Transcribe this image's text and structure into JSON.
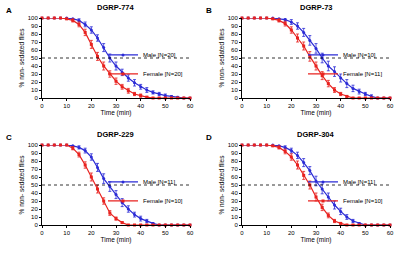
{
  "chart_data": [
    {
      "type": "line",
      "panel_label": "A",
      "title": "DGRP-774",
      "x_label": "Time (min)",
      "y_label": "% non- sedated flies",
      "x": [
        0,
        2.5,
        5,
        7.5,
        10,
        12.5,
        15,
        17.5,
        20,
        22.5,
        25,
        27.5,
        30,
        32.5,
        35,
        37.5,
        40,
        42.5,
        45,
        47.5,
        50,
        52.5,
        55,
        57.5,
        60
      ],
      "series": [
        {
          "name": "Male [N=20]",
          "color": "#2b2bd6",
          "marker": "circle",
          "values": [
            100,
            100,
            100,
            100,
            100,
            99,
            97,
            92,
            85,
            75,
            63,
            50,
            40,
            32,
            25,
            19,
            14,
            10,
            7,
            5,
            3,
            2,
            1,
            0,
            0
          ],
          "errors": [
            0,
            0,
            0,
            0,
            0,
            1,
            2,
            3,
            4,
            4,
            5,
            5,
            5,
            4,
            4,
            4,
            3,
            3,
            2,
            2,
            2,
            1,
            1,
            0,
            0
          ]
        },
        {
          "name": "Female [N=20]",
          "color": "#e8221f",
          "marker": "square",
          "values": [
            100,
            100,
            100,
            100,
            99,
            97,
            92,
            82,
            67,
            52,
            40,
            30,
            21,
            14,
            9,
            5,
            3,
            1,
            0,
            0,
            0,
            0,
            0,
            0,
            0
          ],
          "errors": [
            0,
            0,
            0,
            0,
            1,
            2,
            3,
            4,
            5,
            5,
            5,
            4,
            4,
            3,
            3,
            2,
            2,
            1,
            0,
            0,
            0,
            0,
            0,
            0,
            0
          ]
        }
      ],
      "reference_line": 50,
      "xlim": [
        0,
        60
      ],
      "ylim": [
        0,
        100
      ],
      "xticks": [
        0,
        10,
        20,
        30,
        40,
        50,
        60
      ],
      "yticks": [
        0,
        10,
        20,
        30,
        40,
        50,
        60,
        70,
        80,
        90,
        100
      ],
      "grid": false
    },
    {
      "type": "line",
      "panel_label": "B",
      "title": "DGRP-73",
      "x_label": "Time (min)",
      "y_label": "% non- sedated flies",
      "x": [
        0,
        2.5,
        5,
        7.5,
        10,
        12.5,
        15,
        17.5,
        20,
        22.5,
        25,
        27.5,
        30,
        32.5,
        35,
        37.5,
        40,
        42.5,
        45,
        47.5,
        50,
        52.5,
        55,
        57.5,
        60
      ],
      "series": [
        {
          "name": "Male [N=10]",
          "color": "#2b2bd6",
          "marker": "circle",
          "values": [
            100,
            100,
            100,
            100,
            100,
            100,
            99,
            98,
            95,
            90,
            82,
            72,
            62,
            50,
            40,
            33,
            25,
            18,
            12,
            8,
            5,
            2,
            0,
            0,
            0
          ],
          "errors": [
            0,
            0,
            0,
            0,
            0,
            0,
            1,
            2,
            3,
            4,
            5,
            6,
            6,
            6,
            6,
            6,
            5,
            5,
            4,
            3,
            2,
            2,
            0,
            0,
            0
          ]
        },
        {
          "name": "Female [N=11]",
          "color": "#e8221f",
          "marker": "square",
          "values": [
            100,
            100,
            100,
            100,
            100,
            99,
            97,
            93,
            85,
            75,
            65,
            52,
            40,
            28,
            18,
            10,
            5,
            2,
            0,
            0,
            0,
            0,
            0,
            0,
            0
          ],
          "errors": [
            0,
            0,
            0,
            0,
            0,
            1,
            2,
            3,
            4,
            5,
            5,
            6,
            5,
            5,
            4,
            3,
            2,
            1,
            0,
            0,
            0,
            0,
            0,
            0,
            0
          ]
        }
      ],
      "reference_line": 50,
      "xlim": [
        0,
        60
      ],
      "ylim": [
        0,
        100
      ],
      "xticks": [
        0,
        10,
        20,
        30,
        40,
        50,
        60
      ],
      "yticks": [
        0,
        10,
        20,
        30,
        40,
        50,
        60,
        70,
        80,
        90,
        100
      ],
      "grid": false
    },
    {
      "type": "line",
      "panel_label": "C",
      "title": "DGRP-229",
      "x_label": "Time (min)",
      "y_label": "% non- sedated flies",
      "x": [
        0,
        2.5,
        5,
        7.5,
        10,
        12.5,
        15,
        17.5,
        20,
        22.5,
        25,
        27.5,
        30,
        32.5,
        35,
        37.5,
        40,
        42.5,
        45,
        47.5,
        50,
        52.5,
        55,
        57.5,
        60
      ],
      "series": [
        {
          "name": "Male [N=11]",
          "color": "#2b2bd6",
          "marker": "circle",
          "values": [
            100,
            100,
            100,
            100,
            100,
            99,
            97,
            93,
            85,
            72,
            58,
            48,
            38,
            28,
            20,
            13,
            8,
            5,
            2,
            0,
            0,
            0,
            0,
            0,
            0
          ],
          "errors": [
            0,
            0,
            0,
            0,
            0,
            1,
            2,
            3,
            4,
            5,
            6,
            6,
            5,
            5,
            4,
            3,
            3,
            2,
            1,
            0,
            0,
            0,
            0,
            0,
            0
          ]
        },
        {
          "name": "Female [N=10]",
          "color": "#e8221f",
          "marker": "square",
          "values": [
            100,
            100,
            100,
            100,
            100,
            96,
            88,
            75,
            60,
            45,
            30,
            15,
            8,
            3,
            0,
            0,
            0,
            0,
            0,
            0,
            0,
            0,
            0,
            0,
            0
          ],
          "errors": [
            0,
            0,
            0,
            0,
            0,
            2,
            3,
            4,
            5,
            5,
            4,
            3,
            2,
            1,
            0,
            0,
            0,
            0,
            0,
            0,
            0,
            0,
            0,
            0,
            0
          ]
        }
      ],
      "reference_line": 50,
      "xlim": [
        0,
        60
      ],
      "ylim": [
        0,
        100
      ],
      "xticks": [
        0,
        10,
        20,
        30,
        40,
        50,
        60
      ],
      "yticks": [
        0,
        10,
        20,
        30,
        40,
        50,
        60,
        70,
        80,
        90,
        100
      ],
      "grid": false
    },
    {
      "type": "line",
      "panel_label": "D",
      "title": "DGRP-304",
      "x_label": "Time (min)",
      "y_label": "% non- sedated flies",
      "x": [
        0,
        2.5,
        5,
        7.5,
        10,
        12.5,
        15,
        17.5,
        20,
        22.5,
        25,
        27.5,
        30,
        32.5,
        35,
        37.5,
        40,
        42.5,
        45,
        47.5,
        50,
        52.5,
        55,
        57.5,
        60
      ],
      "series": [
        {
          "name": "Male [N=11]",
          "color": "#2b2bd6",
          "marker": "circle",
          "values": [
            100,
            100,
            100,
            100,
            100,
            100,
            99,
            97,
            93,
            87,
            78,
            68,
            55,
            45,
            35,
            25,
            17,
            10,
            5,
            2,
            0,
            0,
            0,
            0,
            0
          ],
          "errors": [
            0,
            0,
            0,
            0,
            0,
            0,
            1,
            2,
            3,
            4,
            5,
            5,
            6,
            6,
            5,
            5,
            4,
            3,
            2,
            1,
            0,
            0,
            0,
            0,
            0
          ]
        },
        {
          "name": "Female [N=10]",
          "color": "#e8221f",
          "marker": "square",
          "values": [
            100,
            100,
            100,
            100,
            100,
            99,
            97,
            92,
            85,
            75,
            62,
            50,
            35,
            22,
            12,
            5,
            2,
            0,
            0,
            0,
            0,
            0,
            0,
            0,
            0
          ],
          "errors": [
            0,
            0,
            0,
            0,
            0,
            1,
            2,
            3,
            4,
            5,
            5,
            5,
            5,
            4,
            3,
            2,
            1,
            0,
            0,
            0,
            0,
            0,
            0,
            0,
            0
          ]
        }
      ],
      "reference_line": 50,
      "xlim": [
        0,
        60
      ],
      "ylim": [
        0,
        100
      ],
      "xticks": [
        0,
        10,
        20,
        30,
        40,
        50,
        60
      ],
      "yticks": [
        0,
        10,
        20,
        30,
        40,
        50,
        60,
        70,
        80,
        90,
        100
      ],
      "grid": false
    }
  ]
}
